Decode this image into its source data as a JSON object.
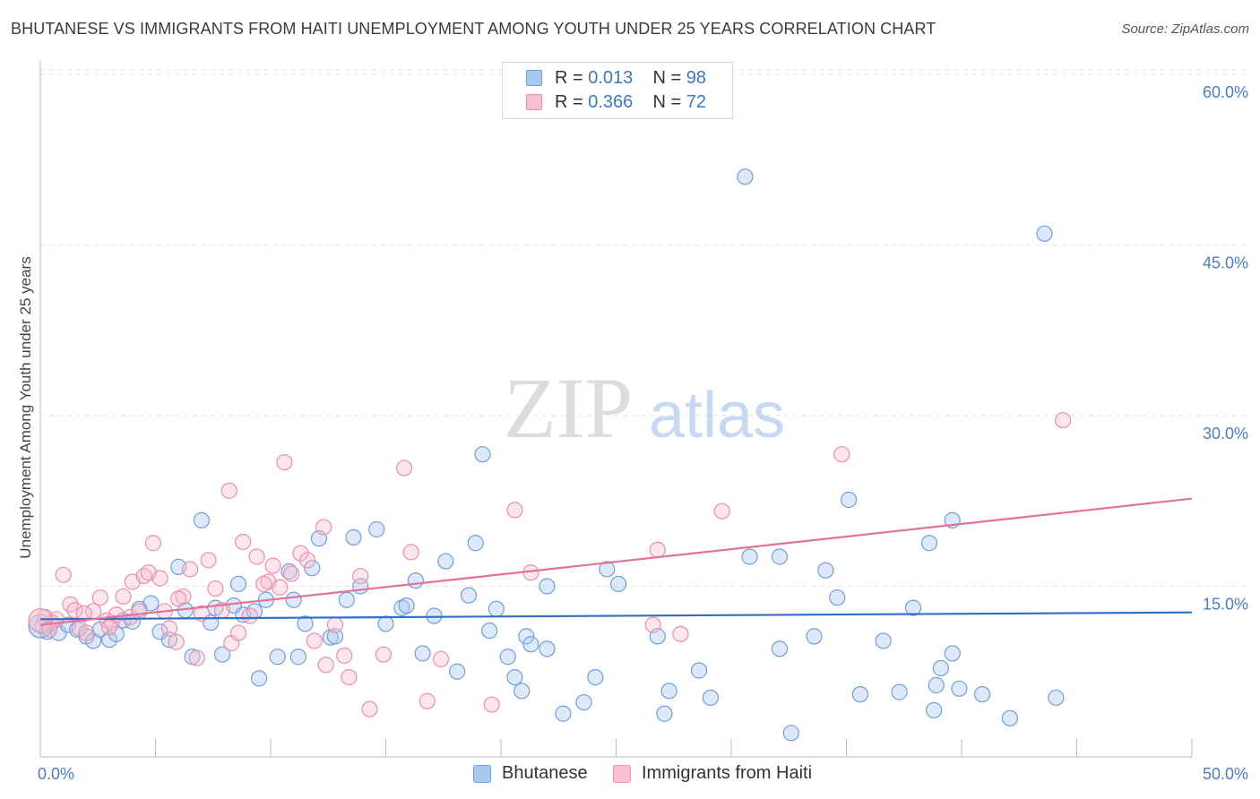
{
  "title": "BHUTANESE VS IMMIGRANTS FROM HAITI UNEMPLOYMENT AMONG YOUTH UNDER 25 YEARS CORRELATION CHART",
  "source": "Source: ZipAtlas.com",
  "watermark": {
    "zip": "ZIP",
    "atlas": "atlas"
  },
  "legend_top": [
    {
      "r_label": "R =",
      "r_value": "0.013",
      "n_label": "N =",
      "n_value": "98"
    },
    {
      "r_label": "R =",
      "r_value": "0.366",
      "n_label": "N =",
      "n_value": "72"
    }
  ],
  "legend_bottom": [
    "Bhutanese",
    "Immigrants from Haiti"
  ],
  "colors": {
    "blue_fill": "#a9c8ee",
    "blue_stroke": "#6f9fdc",
    "blue_line": "#2f6fc6",
    "pink_fill": "#f7bfd0",
    "pink_stroke": "#ec8fab",
    "pink_line": "#e2729a",
    "axis_text": "#4a7cc7",
    "grid": "#e2e2e2"
  },
  "chart_data": {
    "type": "scatter",
    "title": "BHUTANESE VS IMMIGRANTS FROM HAITI UNEMPLOYMENT AMONG YOUTH UNDER 25 YEARS CORRELATION CHART",
    "xlabel": "",
    "ylabel": "Unemployment Among Youth under 25 years",
    "xlim": [
      0,
      50
    ],
    "ylim": [
      0,
      60
    ],
    "x_tick_labels": [
      "0.0%",
      "50.0%"
    ],
    "y_ticks": [
      15,
      30,
      45,
      60
    ],
    "y_tick_labels": [
      "15.0%",
      "30.0%",
      "45.0%",
      "60.0%"
    ],
    "grid": true,
    "legend_position": "top-center",
    "series": [
      {
        "name": "Bhutanese",
        "r": 0.013,
        "n": 98,
        "trend": [
          [
            0,
            12.1
          ],
          [
            50,
            12.7
          ]
        ],
        "points": [
          [
            0.1,
            11.5
          ],
          [
            0.3,
            11.0
          ],
          [
            0.5,
            11.8
          ],
          [
            0.8,
            10.9
          ],
          [
            1.2,
            11.6
          ],
          [
            1.6,
            11.2
          ],
          [
            2.0,
            10.6
          ],
          [
            2.3,
            10.2
          ],
          [
            2.6,
            11.2
          ],
          [
            3.0,
            10.3
          ],
          [
            3.3,
            10.8
          ],
          [
            3.6,
            12.0
          ],
          [
            4.0,
            11.9
          ],
          [
            4.3,
            13.0
          ],
          [
            4.8,
            13.5
          ],
          [
            5.2,
            11.0
          ],
          [
            5.6,
            10.3
          ],
          [
            6.0,
            16.7
          ],
          [
            6.3,
            12.9
          ],
          [
            6.6,
            8.8
          ],
          [
            7.0,
            20.8
          ],
          [
            7.4,
            11.8
          ],
          [
            7.6,
            13.1
          ],
          [
            7.9,
            9.0
          ],
          [
            8.4,
            13.3
          ],
          [
            8.6,
            15.2
          ],
          [
            8.8,
            12.5
          ],
          [
            9.3,
            12.8
          ],
          [
            9.5,
            6.9
          ],
          [
            9.8,
            13.8
          ],
          [
            10.3,
            8.8
          ],
          [
            10.8,
            16.3
          ],
          [
            11.0,
            13.8
          ],
          [
            11.5,
            11.7
          ],
          [
            11.8,
            16.6
          ],
          [
            12.1,
            19.2
          ],
          [
            12.6,
            10.5
          ],
          [
            12.8,
            10.6
          ],
          [
            13.3,
            13.8
          ],
          [
            13.6,
            19.3
          ],
          [
            13.9,
            15.0
          ],
          [
            14.6,
            20.0
          ],
          [
            15.0,
            11.7
          ],
          [
            15.7,
            13.1
          ],
          [
            15.9,
            13.3
          ],
          [
            16.3,
            15.5
          ],
          [
            16.6,
            9.1
          ],
          [
            17.1,
            12.4
          ],
          [
            17.6,
            17.2
          ],
          [
            18.1,
            7.5
          ],
          [
            18.6,
            14.2
          ],
          [
            18.9,
            18.8
          ],
          [
            19.2,
            26.6
          ],
          [
            19.5,
            11.1
          ],
          [
            19.8,
            13.0
          ],
          [
            20.3,
            8.8
          ],
          [
            20.6,
            7.0
          ],
          [
            20.9,
            5.8
          ],
          [
            21.1,
            10.6
          ],
          [
            21.3,
            9.9
          ],
          [
            22.0,
            15.0
          ],
          [
            22.0,
            9.5
          ],
          [
            22.7,
            3.8
          ],
          [
            23.6,
            4.8
          ],
          [
            24.1,
            7.0
          ],
          [
            24.6,
            16.5
          ],
          [
            25.1,
            15.2
          ],
          [
            26.8,
            10.6
          ],
          [
            27.3,
            5.8
          ],
          [
            27.1,
            3.8
          ],
          [
            28.6,
            7.6
          ],
          [
            29.1,
            5.2
          ],
          [
            30.6,
            51.0
          ],
          [
            30.8,
            17.6
          ],
          [
            32.1,
            17.6
          ],
          [
            32.1,
            9.5
          ],
          [
            32.6,
            2.1
          ],
          [
            33.6,
            10.6
          ],
          [
            34.1,
            16.4
          ],
          [
            34.6,
            14.0
          ],
          [
            35.1,
            22.6
          ],
          [
            35.6,
            5.5
          ],
          [
            36.6,
            10.2
          ],
          [
            37.3,
            5.7
          ],
          [
            37.9,
            13.1
          ],
          [
            38.6,
            18.8
          ],
          [
            38.8,
            4.1
          ],
          [
            38.9,
            6.3
          ],
          [
            39.1,
            7.8
          ],
          [
            39.6,
            9.1
          ],
          [
            39.6,
            20.8
          ],
          [
            39.9,
            6.0
          ],
          [
            40.9,
            5.5
          ],
          [
            42.1,
            3.4
          ],
          [
            43.6,
            46.0
          ],
          [
            44.1,
            5.2
          ],
          [
            0.0,
            11.5
          ],
          [
            11.2,
            8.8
          ]
        ]
      },
      {
        "name": "Immigrants from Haiti",
        "r": 0.366,
        "n": 72,
        "trend": [
          [
            0,
            11.6
          ],
          [
            50,
            22.7
          ]
        ],
        "points": [
          [
            0.2,
            12.3
          ],
          [
            0.5,
            11.8
          ],
          [
            0.7,
            12.1
          ],
          [
            1.0,
            16.0
          ],
          [
            1.3,
            13.4
          ],
          [
            1.5,
            12.9
          ],
          [
            1.7,
            11.3
          ],
          [
            2.0,
            10.9
          ],
          [
            2.3,
            12.8
          ],
          [
            2.6,
            14.0
          ],
          [
            2.9,
            12.0
          ],
          [
            3.1,
            11.8
          ],
          [
            3.3,
            12.5
          ],
          [
            3.6,
            14.1
          ],
          [
            3.9,
            12.3
          ],
          [
            4.0,
            15.4
          ],
          [
            4.3,
            12.8
          ],
          [
            4.5,
            15.9
          ],
          [
            4.7,
            16.2
          ],
          [
            4.9,
            18.8
          ],
          [
            5.2,
            15.7
          ],
          [
            5.4,
            12.8
          ],
          [
            5.6,
            11.3
          ],
          [
            5.9,
            10.1
          ],
          [
            6.2,
            14.1
          ],
          [
            6.5,
            16.5
          ],
          [
            6.8,
            8.7
          ],
          [
            7.0,
            12.6
          ],
          [
            7.3,
            17.3
          ],
          [
            7.6,
            14.8
          ],
          [
            7.9,
            12.9
          ],
          [
            8.2,
            23.4
          ],
          [
            8.3,
            10.0
          ],
          [
            8.6,
            10.9
          ],
          [
            8.8,
            18.9
          ],
          [
            9.1,
            12.4
          ],
          [
            9.4,
            17.6
          ],
          [
            9.9,
            15.4
          ],
          [
            10.1,
            16.8
          ],
          [
            10.4,
            14.9
          ],
          [
            10.6,
            25.9
          ],
          [
            10.9,
            16.1
          ],
          [
            11.3,
            17.9
          ],
          [
            11.6,
            17.3
          ],
          [
            11.9,
            10.2
          ],
          [
            12.3,
            20.2
          ],
          [
            12.4,
            8.1
          ],
          [
            12.8,
            11.6
          ],
          [
            13.2,
            8.9
          ],
          [
            13.4,
            7.0
          ],
          [
            13.9,
            15.9
          ],
          [
            14.3,
            4.2
          ],
          [
            14.9,
            9.0
          ],
          [
            15.8,
            25.4
          ],
          [
            16.1,
            18.0
          ],
          [
            16.8,
            4.9
          ],
          [
            17.4,
            8.6
          ],
          [
            19.6,
            4.6
          ],
          [
            20.6,
            21.7
          ],
          [
            21.3,
            16.2
          ],
          [
            26.6,
            11.6
          ],
          [
            26.8,
            18.2
          ],
          [
            27.8,
            10.8
          ],
          [
            29.6,
            21.6
          ],
          [
            34.8,
            26.6
          ],
          [
            44.4,
            29.6
          ],
          [
            0.0,
            12.0
          ],
          [
            0.4,
            11.2
          ],
          [
            1.9,
            12.6
          ],
          [
            3.0,
            11.4
          ],
          [
            6.0,
            13.9
          ],
          [
            9.7,
            15.2
          ]
        ]
      }
    ]
  }
}
